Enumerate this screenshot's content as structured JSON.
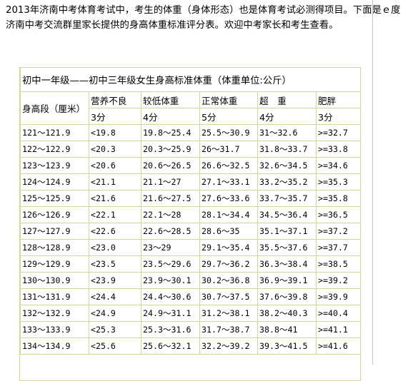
{
  "intro": "2013年济南中考体育考试中，考生的体重（身体形态）也是体育考试必测得项目。下面是ｅ度济南中考交流群里家长提供的身高体重标准评分表。欢迎中考家长和考生查看。",
  "table": {
    "title": "初中一年级——初中三年级女生身高标准体重（体重单位:公斤）",
    "height_header": "身高段（厘米）",
    "columns": [
      {
        "label": "营养不良",
        "score": "3分"
      },
      {
        "label": "较低体重",
        "score": "4分"
      },
      {
        "label": "正常体重",
        "score": "5分"
      },
      {
        "label": "超　重",
        "score": "4分"
      },
      {
        "label": "肥胖",
        "score": "3分"
      }
    ],
    "rows": [
      [
        "121～121.9",
        "<19.8",
        "19.8～25.4",
        "25.5～30.9",
        "31～32.6",
        ">=32.7"
      ],
      [
        "122～122.9",
        "<20.3",
        "20.3～25.9",
        "26～31.7",
        "31.8～33.7",
        ">=33.8"
      ],
      [
        "123～123.9",
        "<20.6",
        "20.6～26.5",
        "26.6～32.5",
        "32.6～34.5",
        ">=34.6"
      ],
      [
        "124～124.9",
        "<21.1",
        "21.1～27",
        "27.1～33.1",
        "33.2～35.2",
        ">=35.3"
      ],
      [
        "125～125.9",
        "<21.6",
        "21.6～27.5",
        "27.6～33.6",
        "33.7～35.7",
        ">=35.8"
      ],
      [
        "126～126.9",
        "<22.1",
        "22.1～28",
        "28.1～34.4",
        "34.5～36.4",
        ">=36.5"
      ],
      [
        "127～127.9",
        "<22.6",
        "22.6～28.5",
        "28.6～35",
        "35.1～37.1",
        ">=37.2"
      ],
      [
        "128～128.9",
        "<23.0",
        "23～29",
        "29.1～35.4",
        "35.5～37.6",
        ">=37.7"
      ],
      [
        "129～129.9",
        "<23.5",
        "23.5～29.6",
        "29.7～36.2",
        "36.3～38.4",
        ">=38.5"
      ],
      [
        "130～130.9",
        "<23.9",
        "23.9～30.1",
        "30.2～36.8",
        "36.9～39.1",
        ">=39.2"
      ],
      [
        "131～131.9",
        "<24.4",
        "24.4～30.6",
        "30.7～37.5",
        "37.6～39.8",
        ">=39.9"
      ],
      [
        "132～132.9",
        "<24.9",
        "24.9～31.1",
        "31.2～38.1",
        "38.2～40.3",
        ">=40.4"
      ],
      [
        "133～133.9",
        "<25.3",
        "25.3～31.6",
        "31.7～38.7",
        "38.8～41",
        ">=41.1"
      ],
      [
        "134～134.9",
        "<25.6",
        "25.6～32.1",
        "32.2～39.2",
        "39.3～41.5",
        ">=41.6"
      ]
    ]
  }
}
